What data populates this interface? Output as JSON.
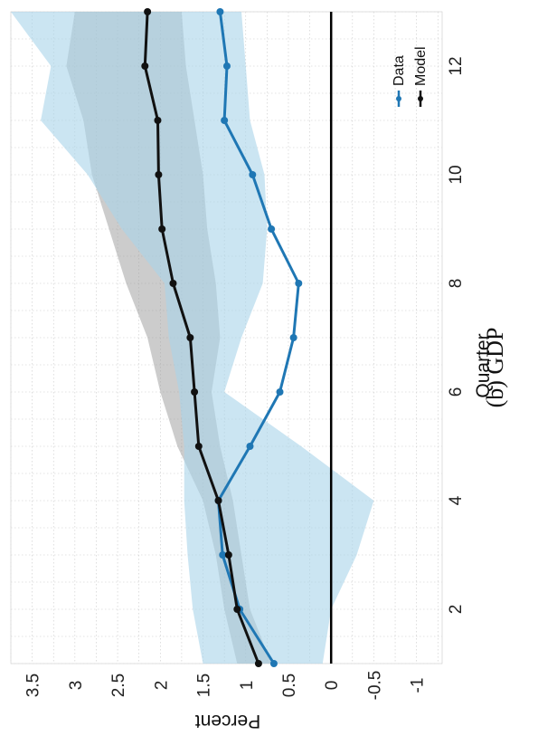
{
  "caption": "(b) GDP",
  "colors": {
    "data": "#1f77b4",
    "model": "#111111",
    "data_band": "#a9d3ea",
    "model_band": "#9a9a9a"
  },
  "chart_data": {
    "type": "line",
    "xlabel": "Quarter",
    "ylabel": "Percent",
    "xlim": [
      1,
      13
    ],
    "ylim": [
      -1.3,
      3.75
    ],
    "x_ticks": [
      2,
      4,
      6,
      8,
      10,
      12
    ],
    "y_ticks": [
      -1,
      -0.5,
      0,
      0.5,
      1,
      1.5,
      2,
      2.5,
      3,
      3.5
    ],
    "y_tick_labels": [
      "-1",
      "-0.5",
      "0",
      "0.5",
      "1",
      "1.5",
      "2",
      "2.5",
      "3",
      "3.5"
    ],
    "grid": true,
    "rotated": "90 degrees counter-clockwise",
    "legend_position": "top-right",
    "x": [
      1,
      2,
      3,
      4,
      5,
      6,
      7,
      8,
      9,
      10,
      11,
      12,
      13
    ],
    "series": [
      {
        "name": "Data",
        "values": [
          0.67,
          1.07,
          1.27,
          1.32,
          0.95,
          0.6,
          0.44,
          0.38,
          0.7,
          0.92,
          1.25,
          1.22,
          1.3
        ]
      },
      {
        "name": "Model",
        "values": [
          0.85,
          1.1,
          1.2,
          1.32,
          1.55,
          1.6,
          1.65,
          1.85,
          1.98,
          2.02,
          2.03,
          2.18,
          2.15
        ]
      }
    ],
    "bands": [
      {
        "of": "Data",
        "lower": [
          0.1,
          0.0,
          -0.3,
          -0.5,
          0.35,
          1.25,
          1.05,
          0.8,
          0.75,
          0.78,
          0.95,
          1.0,
          1.05
        ],
        "upper": [
          1.5,
          1.62,
          1.68,
          1.72,
          1.72,
          1.78,
          1.9,
          1.95,
          2.45,
          2.85,
          3.4,
          3.28,
          3.75
        ]
      },
      {
        "of": "Model",
        "lower": [
          0.7,
          0.95,
          1.05,
          1.15,
          1.3,
          1.4,
          1.3,
          1.35,
          1.45,
          1.5,
          1.6,
          1.7,
          1.75
        ]
      },
      {
        "of": "Model",
        "upper": [
          1.1,
          1.25,
          1.35,
          1.5,
          1.8,
          2.0,
          2.15,
          2.4,
          2.6,
          2.8,
          2.9,
          3.1,
          3.0
        ]
      }
    ]
  }
}
